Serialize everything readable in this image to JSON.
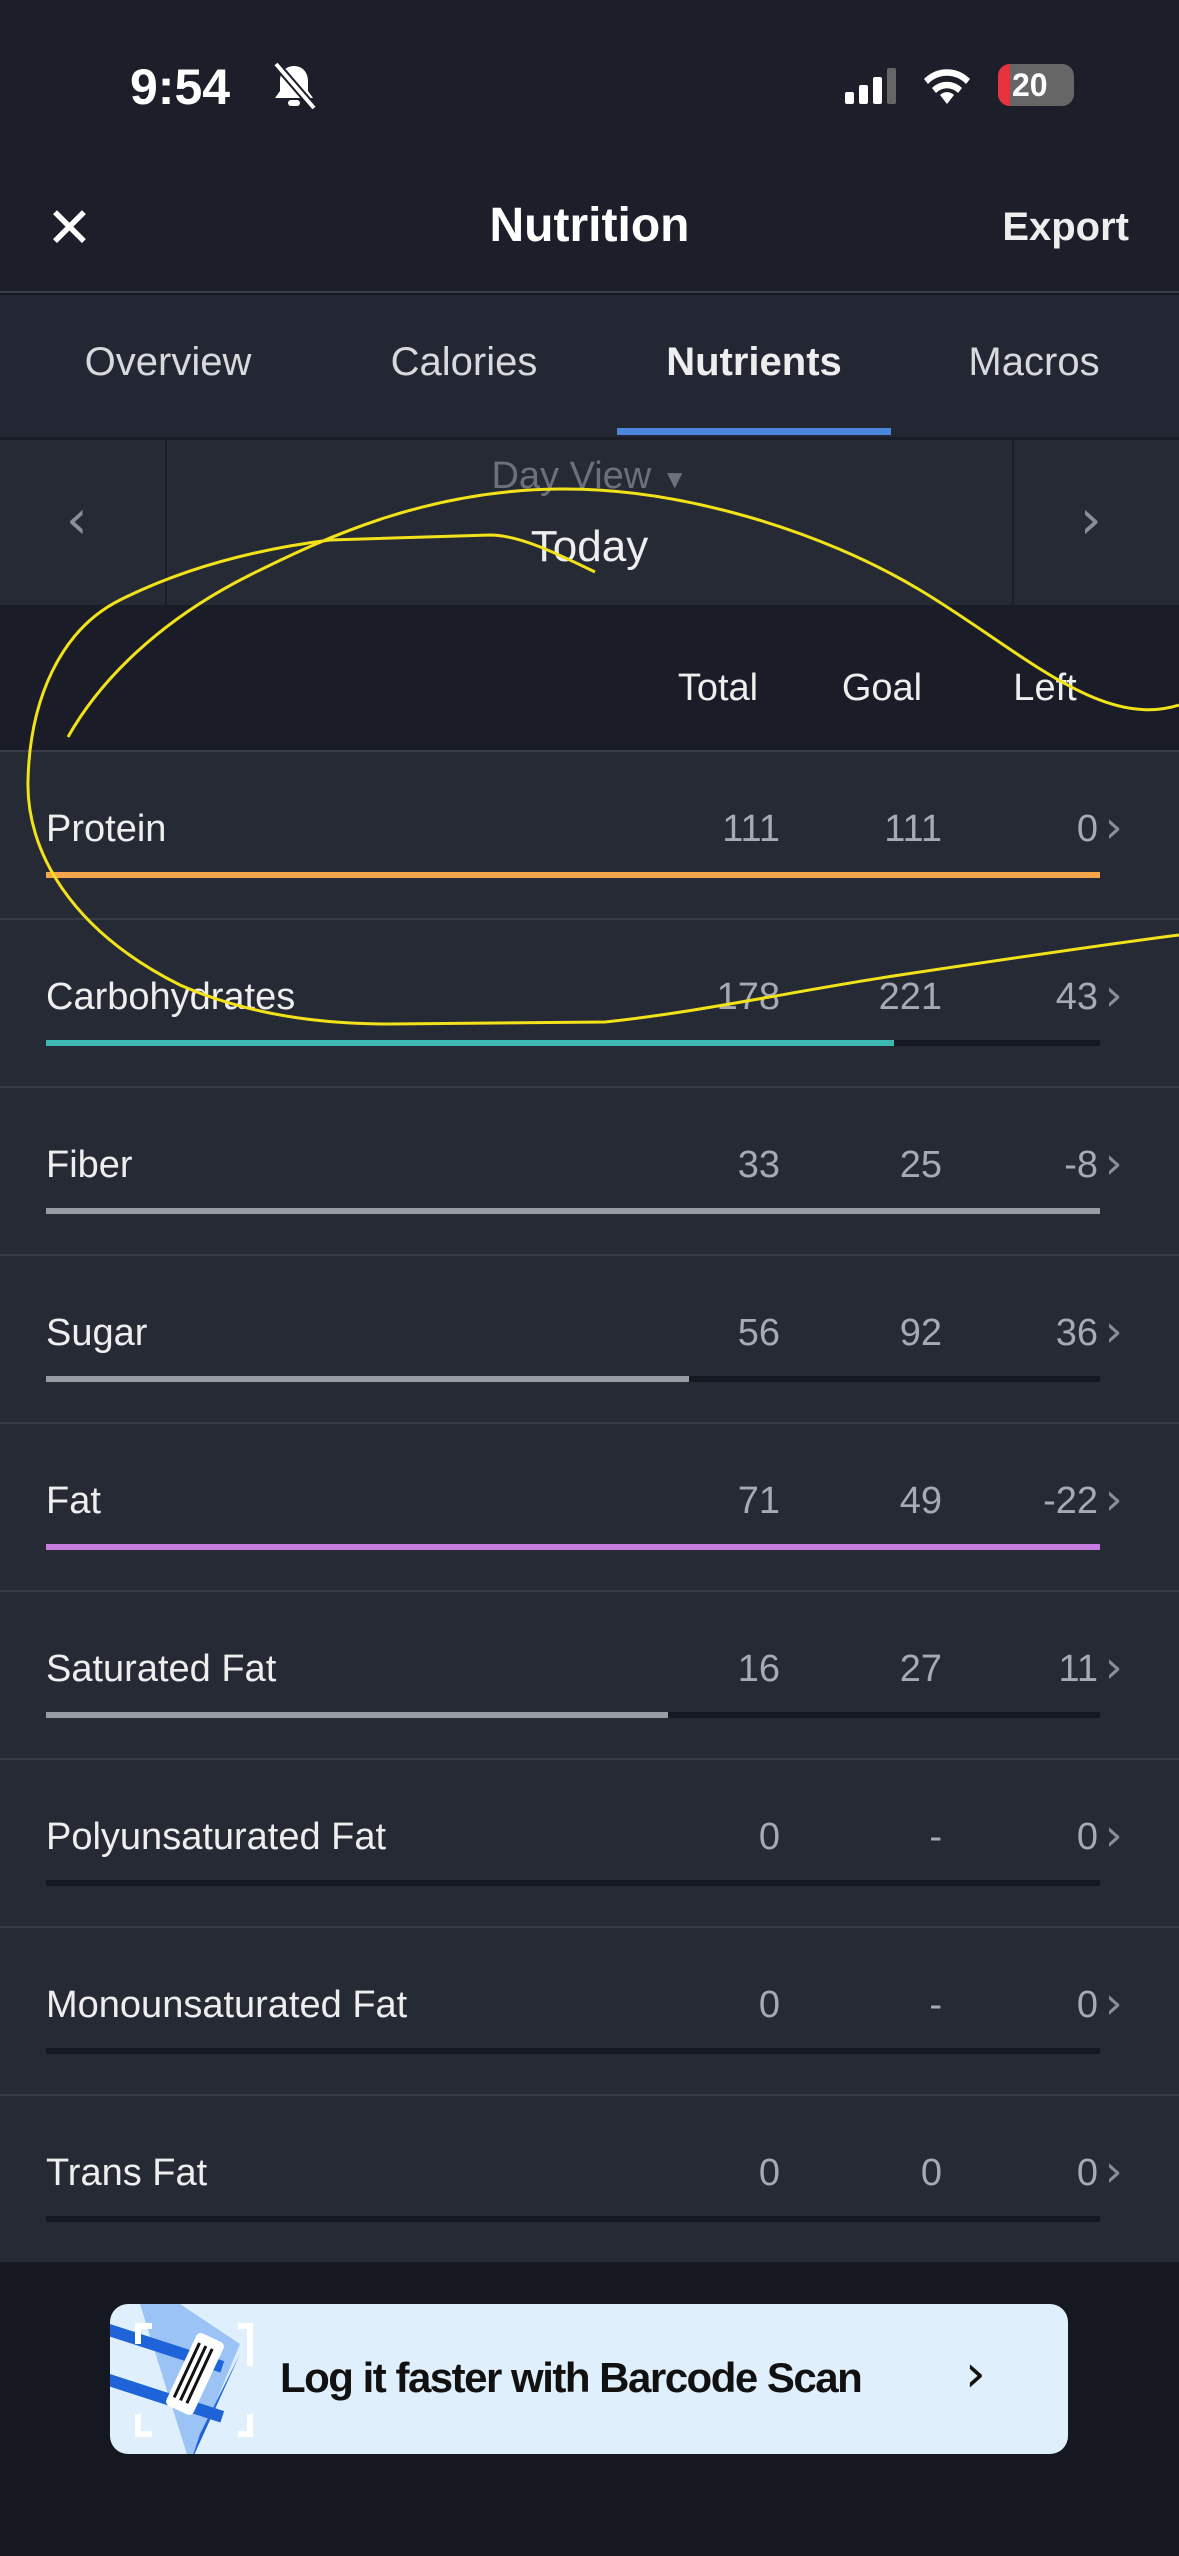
{
  "status": {
    "time": "9:54",
    "battery": "20"
  },
  "header": {
    "title": "Nutrition",
    "export_label": "Export"
  },
  "tabs": [
    {
      "label": "Overview"
    },
    {
      "label": "Calories"
    },
    {
      "label": "Nutrients",
      "active": true
    },
    {
      "label": "Macros"
    }
  ],
  "date_nav": {
    "view": "Day View",
    "date": "Today"
  },
  "columns": {
    "total": "Total",
    "goal": "Goal",
    "left": "Left"
  },
  "rows": [
    {
      "name": "Protein",
      "total": "111",
      "goal": "111",
      "left": "0",
      "progress": 1.0,
      "color": "#f5a54a"
    },
    {
      "name": "Carbohydrates",
      "total": "178",
      "goal": "221",
      "left": "43",
      "progress": 0.805,
      "color": "#3bb8b0"
    },
    {
      "name": "Fiber",
      "total": "33",
      "goal": "25",
      "left": "-8",
      "progress": 1.0,
      "color": "#9a9ca3"
    },
    {
      "name": "Sugar",
      "total": "56",
      "goal": "92",
      "left": "36",
      "progress": 0.61,
      "color": "#9a9ca3"
    },
    {
      "name": "Fat",
      "total": "71",
      "goal": "49",
      "left": "-22",
      "progress": 1.0,
      "color": "#c77de0"
    },
    {
      "name": "Saturated Fat",
      "total": "16",
      "goal": "27",
      "left": "11",
      "progress": 0.59,
      "color": "#9a9ca3"
    },
    {
      "name": "Polyunsaturated Fat",
      "total": "0",
      "goal": "-",
      "left": "0",
      "progress": 0,
      "color": "#9a9ca3"
    },
    {
      "name": "Monounsaturated Fat",
      "total": "0",
      "goal": "-",
      "left": "0",
      "progress": 0,
      "color": "#9a9ca3"
    },
    {
      "name": "Trans Fat",
      "total": "0",
      "goal": "0",
      "left": "0",
      "progress": 0,
      "color": "#9a9ca3"
    }
  ],
  "banner": {
    "text": "Log it faster with Barcode Scan"
  },
  "annotation_color": "#f2e21a"
}
